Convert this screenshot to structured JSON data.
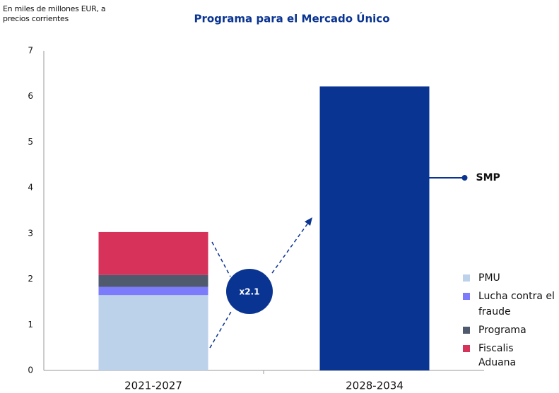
{
  "chart_data": {
    "type": "stacked_bar",
    "title": "Programa para el Mercado Único",
    "ylabel": "En miles de millones EUR, a precios corrientes",
    "categories": [
      "2021-2027",
      "2028-2034"
    ],
    "series": [
      {
        "name": "PMU",
        "color": "#bcd1ea",
        "values": [
          1.65,
          null
        ],
        "legend": true
      },
      {
        "name": "Lucha contra el fraude",
        "color": "#7b7bfb",
        "values": [
          0.18,
          null
        ],
        "legend": true
      },
      {
        "name": "Programa",
        "color": "#4f5a6e",
        "values": [
          0.26,
          null
        ],
        "legend": true
      },
      {
        "name": "Fiscalis",
        "color": "#d6325a",
        "values": [
          0.94,
          null
        ],
        "legend": true
      },
      {
        "name": "SMP",
        "color": "#0a3491",
        "values": [
          null,
          6.22
        ],
        "legend": false
      }
    ],
    "legend_note": "Aduana",
    "multiplier_label": "x2.1",
    "ylim": [
      0,
      7
    ],
    "yticks": [
      0,
      1,
      2,
      3,
      4,
      5,
      6,
      7
    ]
  }
}
